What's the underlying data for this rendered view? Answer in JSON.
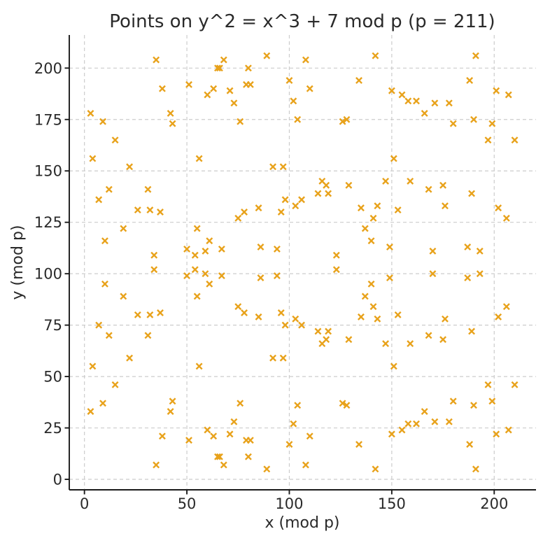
{
  "chart_data": {
    "type": "scatter",
    "title": "Points on y^2 = x^3 + 7 mod p (p = 211)",
    "xlabel": "x (mod p)",
    "ylabel": "y (mod p)",
    "xticks": [
      0,
      50,
      100,
      150,
      200
    ],
    "yticks": [
      0,
      25,
      50,
      75,
      100,
      125,
      150,
      175,
      200
    ],
    "xlim": [
      -7.4,
      220.4
    ],
    "ylim": [
      -5.1,
      216.1
    ],
    "grid": true,
    "grid_style": "dashed",
    "legend": "none",
    "marker_shape": "x",
    "colors": {
      "marker": "#E8A21B",
      "grid": "#cccccc",
      "spine": "#1a1a1a",
      "text": "#2a2a2a",
      "background": "#ffffff"
    },
    "points": [
      [
        3,
        33
      ],
      [
        3,
        178
      ],
      [
        4,
        55
      ],
      [
        4,
        156
      ],
      [
        7,
        75
      ],
      [
        7,
        136
      ],
      [
        9,
        37
      ],
      [
        9,
        174
      ],
      [
        10,
        95
      ],
      [
        10,
        116
      ],
      [
        12,
        70
      ],
      [
        12,
        141
      ],
      [
        15,
        46
      ],
      [
        15,
        165
      ],
      [
        19,
        89
      ],
      [
        19,
        122
      ],
      [
        22,
        59
      ],
      [
        22,
        152
      ],
      [
        26,
        80
      ],
      [
        26,
        131
      ],
      [
        31,
        70
      ],
      [
        31,
        141
      ],
      [
        32,
        80
      ],
      [
        32,
        131
      ],
      [
        34,
        102
      ],
      [
        34,
        109
      ],
      [
        35,
        7
      ],
      [
        35,
        204
      ],
      [
        37,
        81
      ],
      [
        37,
        130
      ],
      [
        38,
        21
      ],
      [
        38,
        190
      ],
      [
        42,
        33
      ],
      [
        42,
        178
      ],
      [
        43,
        38
      ],
      [
        43,
        173
      ],
      [
        50,
        99
      ],
      [
        50,
        112
      ],
      [
        51,
        19
      ],
      [
        51,
        192
      ],
      [
        54,
        102
      ],
      [
        54,
        109
      ],
      [
        55,
        89
      ],
      [
        55,
        122
      ],
      [
        56,
        55
      ],
      [
        56,
        156
      ],
      [
        59,
        100
      ],
      [
        59,
        111
      ],
      [
        60,
        24
      ],
      [
        60,
        187
      ],
      [
        61,
        95
      ],
      [
        61,
        116
      ],
      [
        63,
        21
      ],
      [
        63,
        190
      ],
      [
        65,
        11
      ],
      [
        65,
        200
      ],
      [
        66,
        11
      ],
      [
        66,
        200
      ],
      [
        67,
        99
      ],
      [
        67,
        112
      ],
      [
        68,
        7
      ],
      [
        68,
        204
      ],
      [
        71,
        22
      ],
      [
        71,
        189
      ],
      [
        73,
        28
      ],
      [
        73,
        183
      ],
      [
        75,
        84
      ],
      [
        75,
        127
      ],
      [
        76,
        37
      ],
      [
        76,
        174
      ],
      [
        78,
        81
      ],
      [
        78,
        130
      ],
      [
        79,
        19
      ],
      [
        79,
        192
      ],
      [
        80,
        11
      ],
      [
        80,
        200
      ],
      [
        81,
        19
      ],
      [
        81,
        192
      ],
      [
        85,
        79
      ],
      [
        85,
        132
      ],
      [
        86,
        98
      ],
      [
        86,
        113
      ],
      [
        89,
        5
      ],
      [
        89,
        206
      ],
      [
        92,
        59
      ],
      [
        92,
        152
      ],
      [
        94,
        99
      ],
      [
        94,
        112
      ],
      [
        96,
        81
      ],
      [
        96,
        130
      ],
      [
        97,
        59
      ],
      [
        97,
        152
      ],
      [
        98,
        75
      ],
      [
        98,
        136
      ],
      [
        100,
        17
      ],
      [
        100,
        194
      ],
      [
        102,
        27
      ],
      [
        102,
        184
      ],
      [
        103,
        78
      ],
      [
        103,
        133
      ],
      [
        104,
        36
      ],
      [
        104,
        175
      ],
      [
        106,
        75
      ],
      [
        106,
        136
      ],
      [
        108,
        7
      ],
      [
        108,
        204
      ],
      [
        110,
        21
      ],
      [
        110,
        190
      ],
      [
        114,
        72
      ],
      [
        114,
        139
      ],
      [
        116,
        66
      ],
      [
        116,
        145
      ],
      [
        118,
        68
      ],
      [
        118,
        143
      ],
      [
        119,
        72
      ],
      [
        119,
        139
      ],
      [
        123,
        102
      ],
      [
        123,
        109
      ],
      [
        126,
        37
      ],
      [
        126,
        174
      ],
      [
        128,
        36
      ],
      [
        128,
        175
      ],
      [
        129,
        68
      ],
      [
        129,
        143
      ],
      [
        134,
        17
      ],
      [
        134,
        194
      ],
      [
        135,
        79
      ],
      [
        135,
        132
      ],
      [
        137,
        89
      ],
      [
        137,
        122
      ],
      [
        140,
        95
      ],
      [
        140,
        116
      ],
      [
        141,
        84
      ],
      [
        141,
        127
      ],
      [
        142,
        5
      ],
      [
        142,
        206
      ],
      [
        143,
        78
      ],
      [
        143,
        133
      ],
      [
        147,
        66
      ],
      [
        147,
        145
      ],
      [
        149,
        98
      ],
      [
        149,
        113
      ],
      [
        150,
        22
      ],
      [
        150,
        189
      ],
      [
        151,
        55
      ],
      [
        151,
        156
      ],
      [
        153,
        80
      ],
      [
        153,
        131
      ],
      [
        155,
        24
      ],
      [
        155,
        187
      ],
      [
        158,
        27
      ],
      [
        158,
        184
      ],
      [
        159,
        66
      ],
      [
        159,
        145
      ],
      [
        162,
        27
      ],
      [
        162,
        184
      ],
      [
        166,
        33
      ],
      [
        166,
        178
      ],
      [
        168,
        70
      ],
      [
        168,
        141
      ],
      [
        170,
        100
      ],
      [
        170,
        111
      ],
      [
        171,
        28
      ],
      [
        171,
        183
      ],
      [
        175,
        68
      ],
      [
        175,
        143
      ],
      [
        176,
        78
      ],
      [
        176,
        133
      ],
      [
        178,
        28
      ],
      [
        178,
        183
      ],
      [
        180,
        38
      ],
      [
        180,
        173
      ],
      [
        187,
        98
      ],
      [
        187,
        113
      ],
      [
        188,
        17
      ],
      [
        188,
        194
      ],
      [
        189,
        72
      ],
      [
        189,
        139
      ],
      [
        190,
        36
      ],
      [
        190,
        175
      ],
      [
        191,
        5
      ],
      [
        191,
        206
      ],
      [
        193,
        100
      ],
      [
        193,
        111
      ],
      [
        197,
        46
      ],
      [
        197,
        165
      ],
      [
        199,
        38
      ],
      [
        199,
        173
      ],
      [
        201,
        22
      ],
      [
        201,
        189
      ],
      [
        202,
        79
      ],
      [
        202,
        132
      ],
      [
        206,
        84
      ],
      [
        206,
        127
      ],
      [
        207,
        24
      ],
      [
        207,
        187
      ],
      [
        210,
        46
      ],
      [
        210,
        165
      ]
    ]
  }
}
